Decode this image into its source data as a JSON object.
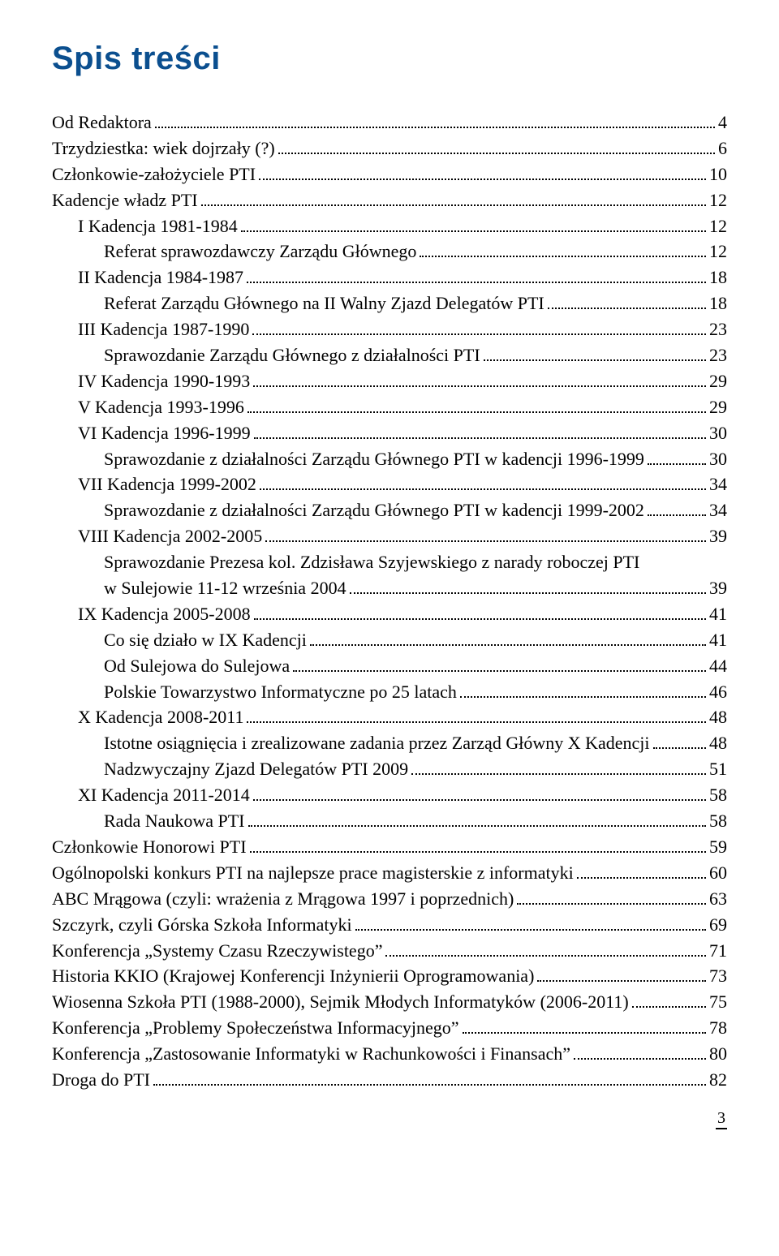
{
  "title": "Spis treści",
  "page_number": "3",
  "colors": {
    "title": "#0b4f8f",
    "text": "#000000",
    "background": "#ffffff"
  },
  "typography": {
    "title_font": "Arial Narrow",
    "title_size_pt": 30,
    "title_weight": "bold",
    "body_font": "Garamond",
    "body_size_pt": 16
  },
  "toc": [
    {
      "label": "Od Redaktora",
      "page": "4",
      "indent": 0
    },
    {
      "label": "Trzydziestka: wiek dojrzały (?)",
      "page": "6",
      "indent": 0
    },
    {
      "label": "Członkowie-założyciele PTI",
      "page": "10",
      "indent": 0
    },
    {
      "label": "Kadencje władz PTI",
      "page": "12",
      "indent": 0
    },
    {
      "label": "I Kadencja 1981-1984",
      "page": "12",
      "indent": 1
    },
    {
      "label": "Referat sprawozdawczy Zarządu Głównego",
      "page": "12",
      "indent": 2
    },
    {
      "label": "II Kadencja 1984-1987",
      "page": "18",
      "indent": 1
    },
    {
      "label": "Referat Zarządu Głównego na II Walny Zjazd Delegatów PTI",
      "page": "18",
      "indent": 2
    },
    {
      "label": "III Kadencja 1987-1990",
      "page": "23",
      "indent": 1
    },
    {
      "label": "Sprawozdanie Zarządu Głównego z działalności PTI",
      "page": "23",
      "indent": 2
    },
    {
      "label": "IV Kadencja 1990-1993",
      "page": "29",
      "indent": 1
    },
    {
      "label": "V Kadencja 1993-1996",
      "page": "29",
      "indent": 1
    },
    {
      "label": "VI Kadencja 1996-1999",
      "page": "30",
      "indent": 1
    },
    {
      "label": "Sprawozdanie z działalności Zarządu Głównego PTI w kadencji 1996-1999",
      "page": "30",
      "indent": 2
    },
    {
      "label": "VII Kadencja 1999-2002",
      "page": "34",
      "indent": 1
    },
    {
      "label": "Sprawozdanie z działalności Zarządu Głównego PTI w kadencji 1999-2002",
      "page": "34",
      "indent": 2
    },
    {
      "label": "VIII Kadencja 2002-2005",
      "page": "39",
      "indent": 1
    },
    {
      "label": "Sprawozdanie Prezesa kol. Zdzisława Szyjewskiego z narady roboczej PTI",
      "wrap": "w Sulejowie 11-12 września 2004",
      "page": "39",
      "indent": 2
    },
    {
      "label": "IX Kadencja 2005-2008",
      "page": "41",
      "indent": 1
    },
    {
      "label": "Co się działo w IX Kadencji",
      "page": "41",
      "indent": 2
    },
    {
      "label": "Od Sulejowa do Sulejowa",
      "page": "44",
      "indent": 2
    },
    {
      "label": "Polskie Towarzystwo Informatyczne po 25 latach",
      "page": "46",
      "indent": 2
    },
    {
      "label": "X Kadencja 2008-2011",
      "page": "48",
      "indent": 1
    },
    {
      "label": "Istotne osiągnięcia i zrealizowane zadania przez Zarząd Główny X Kadencji",
      "page": "48",
      "indent": 2
    },
    {
      "label": "Nadzwyczajny Zjazd Delegatów PTI 2009",
      "page": "51",
      "indent": 2
    },
    {
      "label": "XI Kadencja 2011-2014",
      "page": "58",
      "indent": 1
    },
    {
      "label": "Rada Naukowa PTI",
      "page": "58",
      "indent": 2
    },
    {
      "label": "Członkowie Honorowi PTI",
      "page": "59",
      "indent": 0
    },
    {
      "label": "Ogólnopolski konkurs PTI na najlepsze prace magisterskie z informatyki",
      "page": "60",
      "indent": 0
    },
    {
      "label": "ABC Mrągowa (czyli: wrażenia z Mrągowa 1997 i poprzednich)",
      "page": "63",
      "indent": 0
    },
    {
      "label": "Szczyrk, czyli Górska Szkoła Informatyki",
      "page": "69",
      "indent": 0
    },
    {
      "label": "Konferencja „Systemy Czasu Rzeczywistego”",
      "page": "71",
      "indent": 0
    },
    {
      "label": "Historia KKIO (Krajowej Konferencji Inżynierii Oprogramowania)",
      "page": "73",
      "indent": 0
    },
    {
      "label": "Wiosenna Szkoła PTI (1988-2000), Sejmik Młodych Informatyków (2006-2011)",
      "page": "75",
      "indent": 0
    },
    {
      "label": "Konferencja „Problemy Społeczeństwa Informacyjnego”",
      "page": "78",
      "indent": 0
    },
    {
      "label": "Konferencja „Zastosowanie Informatyki w Rachunkowości i Finansach”",
      "page": "80",
      "indent": 0
    },
    {
      "label": "Droga do PTI",
      "page": "82",
      "indent": 0
    }
  ]
}
